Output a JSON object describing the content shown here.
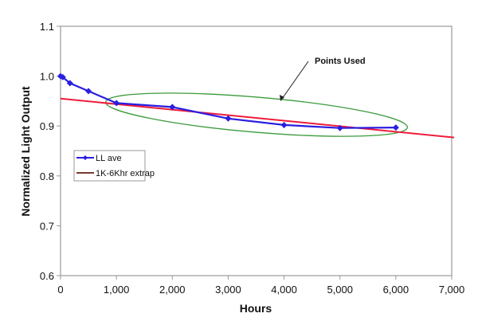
{
  "chart_data": {
    "type": "line",
    "title": "",
    "xlabel": "Hours",
    "ylabel": "Normalized Light Output",
    "xlim": [
      0,
      7000
    ],
    "ylim": [
      0.6,
      1.1
    ],
    "x_ticks": [
      0,
      1000,
      2000,
      3000,
      4000,
      5000,
      6000,
      7000
    ],
    "x_tick_labels": [
      "0",
      "1,000",
      "2,000",
      "3,000",
      "4,000",
      "5,000",
      "6,000",
      "7,000"
    ],
    "y_ticks": [
      0.6,
      0.7,
      0.8,
      0.9,
      1.0,
      1.1
    ],
    "y_tick_labels": [
      "0.6",
      "0.7",
      "0.8",
      "0.9",
      "1.0",
      "1.1"
    ],
    "grid": false,
    "legend_position": "left-center, inside plot",
    "series": [
      {
        "name": "LL ave",
        "color": "#2a1ee0",
        "marker": "diamond",
        "x": [
          0,
          40,
          168,
          500,
          1000,
          2000,
          3000,
          4000,
          5000,
          6000
        ],
        "y": [
          1.0,
          0.998,
          0.986,
          0.97,
          0.946,
          0.938,
          0.915,
          0.902,
          0.896,
          0.897
        ]
      },
      {
        "name": "1K-6Khr extrap",
        "color": "#ee1c3c",
        "legend_color": "#7a3b2e",
        "marker": "none",
        "x": [
          0,
          7000
        ],
        "y": [
          0.955,
          0.877
        ]
      }
    ],
    "annotations": [
      {
        "text": "Points Used",
        "type": "ellipse-with-arrow",
        "ellipse_color": "#3c9a3c",
        "encloses_x_range": [
          1000,
          6000
        ]
      }
    ]
  }
}
